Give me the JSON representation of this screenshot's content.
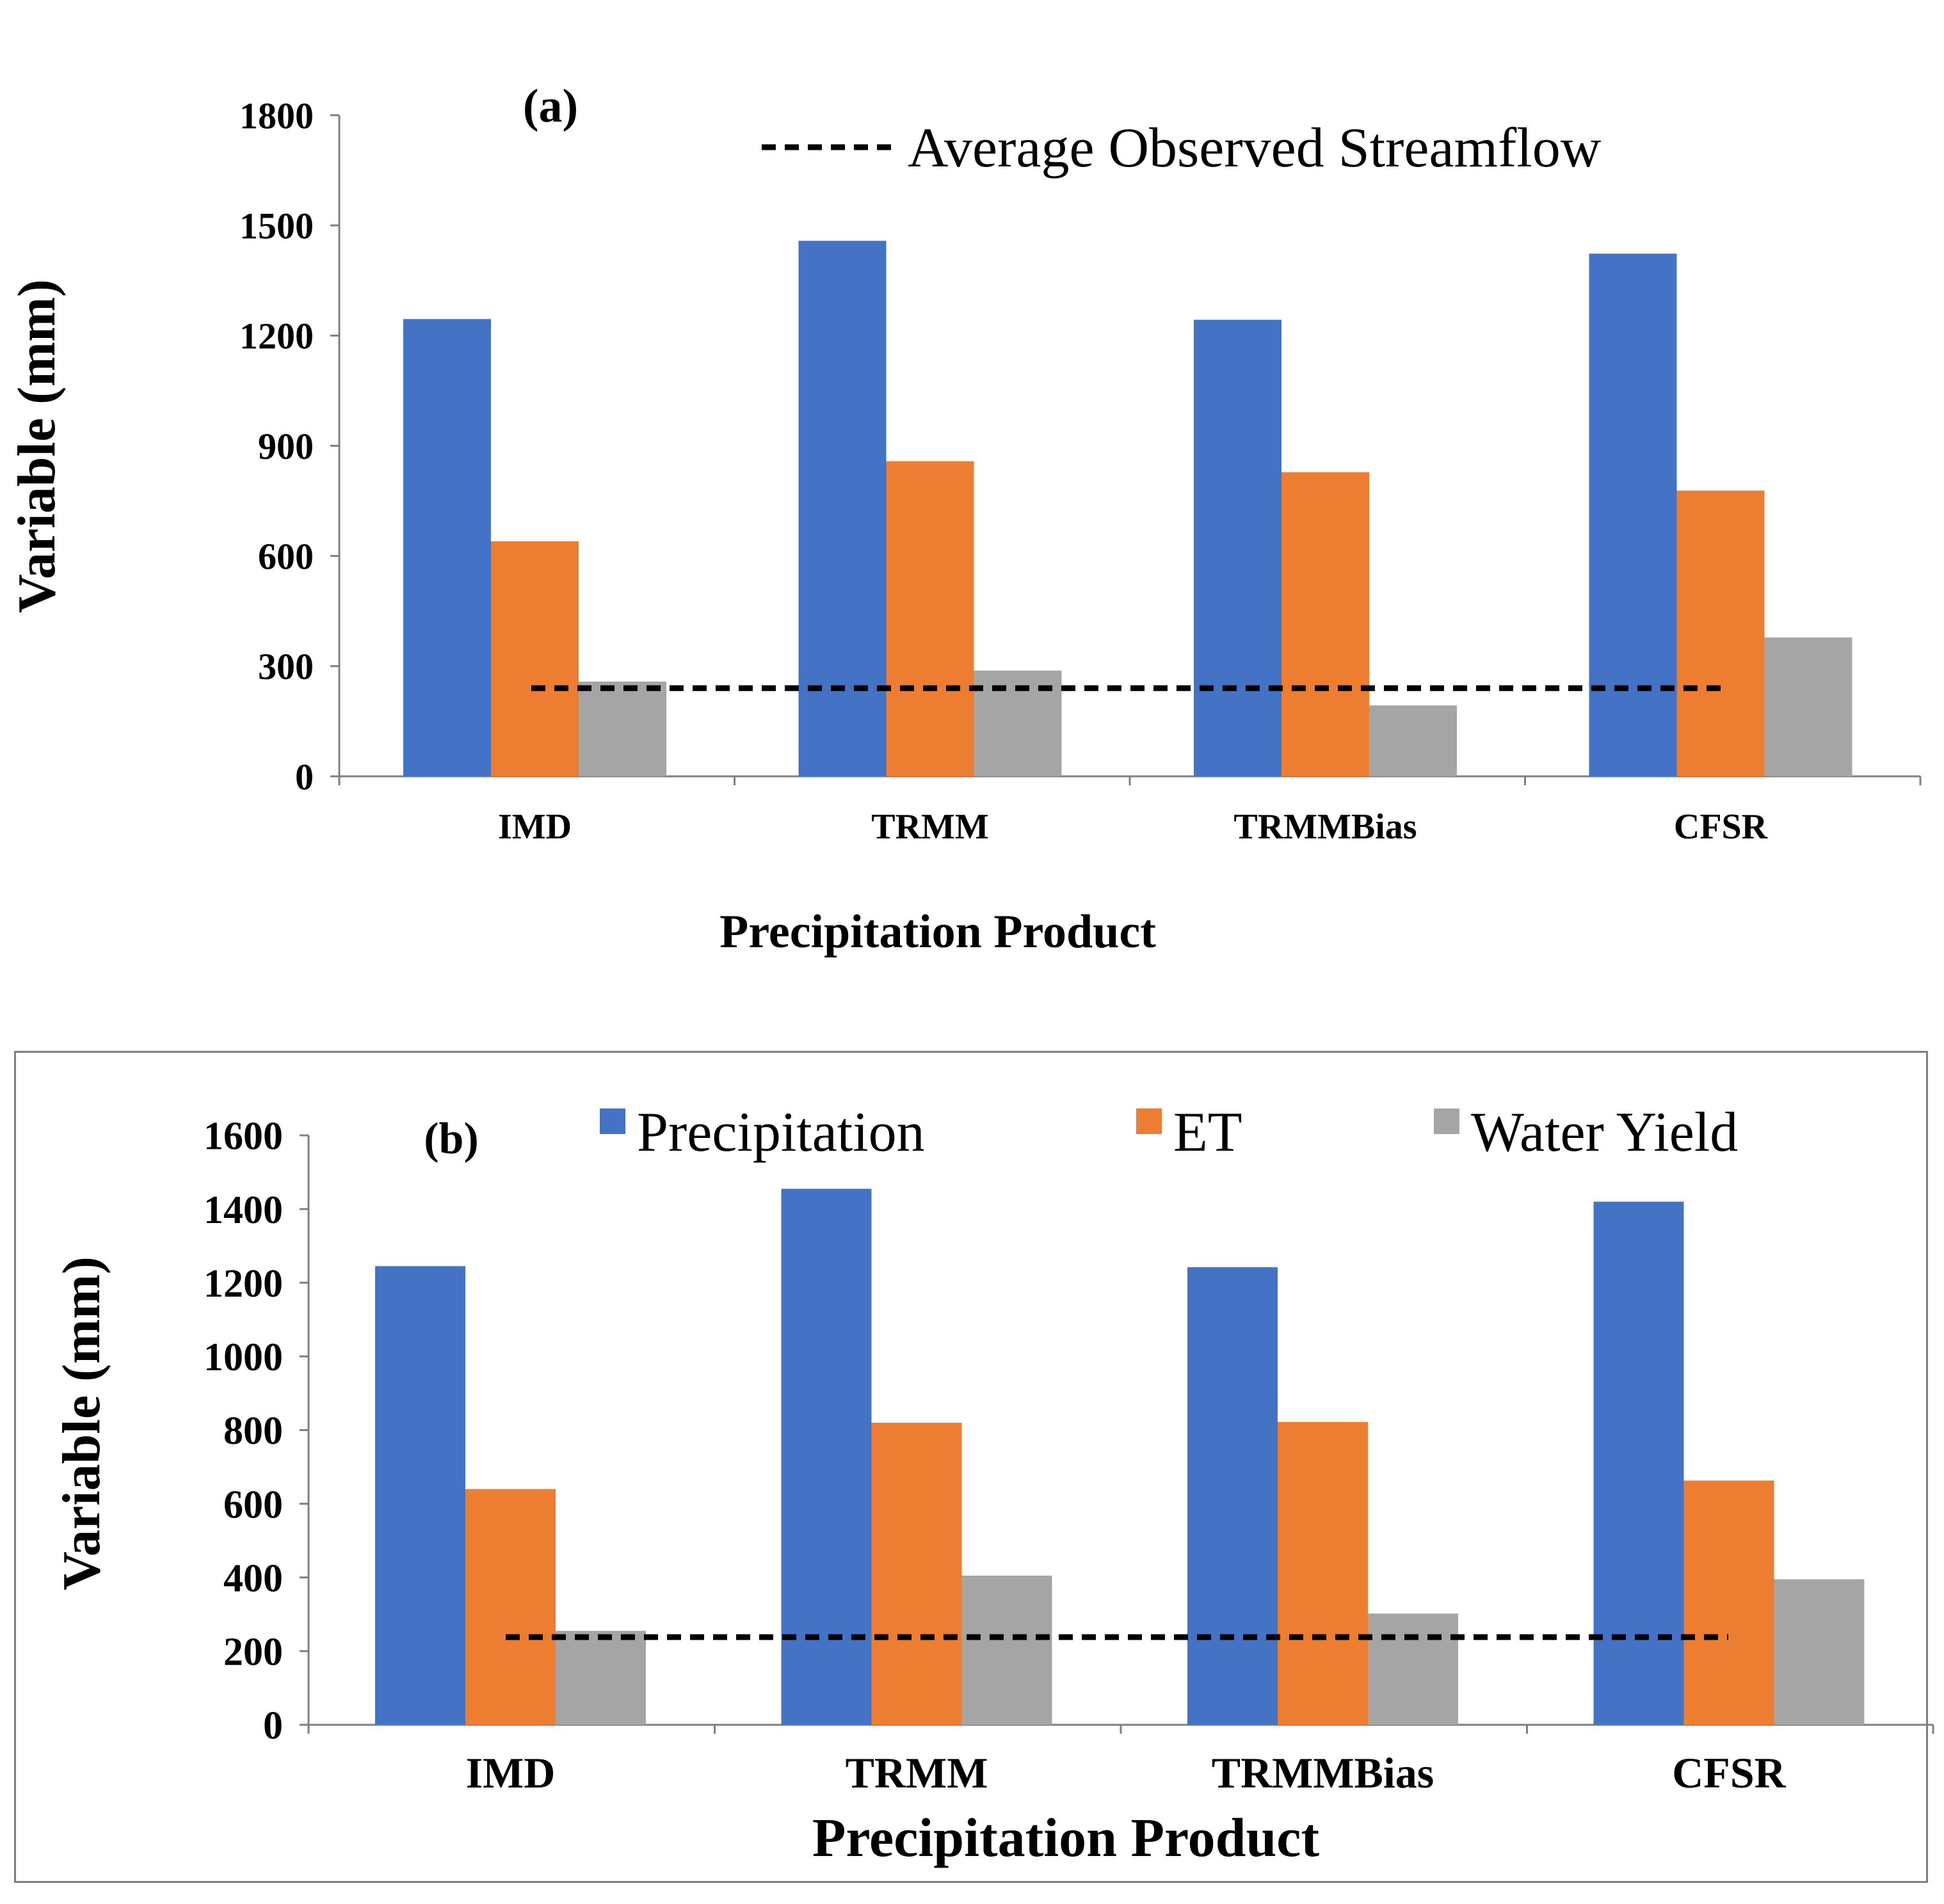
{
  "colors": {
    "precipitation": "#4472C4",
    "et": "#ED7D31",
    "water_yield": "#A5A5A5",
    "axis": "#7f7f7f",
    "text": "#000000"
  },
  "chart_data": [
    {
      "type": "bar",
      "panel_label": "(a)",
      "categories": [
        "IMD",
        "TRMM",
        "TRMMBias",
        "CFSR"
      ],
      "series": [
        {
          "name": "Precipitation",
          "values": [
            1245,
            1458,
            1243,
            1423
          ]
        },
        {
          "name": "ET",
          "values": [
            640,
            858,
            828,
            778
          ]
        },
        {
          "name": "Water Yield",
          "values": [
            258,
            288,
            193,
            378
          ]
        }
      ],
      "reference_line": {
        "name": "Average Observed Streamflow",
        "value": 240
      },
      "xlabel": "Precipitation Product",
      "ylabel": "Variable (mm)",
      "ylim": [
        0,
        1800
      ],
      "yticks": [
        "0",
        "300",
        "600",
        "900",
        "1200",
        "1500",
        "1800"
      ],
      "legend": "top-center",
      "grid": false
    },
    {
      "type": "bar",
      "panel_label": "(b)",
      "categories": [
        "IMD",
        "TRMM",
        "TRMMBias",
        "CFSR"
      ],
      "series": [
        {
          "name": "Precipitation",
          "values": [
            1245,
            1455,
            1242,
            1420
          ]
        },
        {
          "name": "ET",
          "values": [
            640,
            820,
            822,
            663
          ]
        },
        {
          "name": "Water Yield",
          "values": [
            255,
            405,
            302,
            395
          ]
        }
      ],
      "reference_line": {
        "name": "Average Observed Streamflow",
        "value": 238
      },
      "xlabel": "Precipitation Product",
      "ylabel": "Variable (mm)",
      "ylim": [
        0,
        1600
      ],
      "yticks": [
        "0",
        "200",
        "400",
        "600",
        "800",
        "1000",
        "1200",
        "1400",
        "1600"
      ],
      "legend": "top-center",
      "grid": false
    }
  ]
}
